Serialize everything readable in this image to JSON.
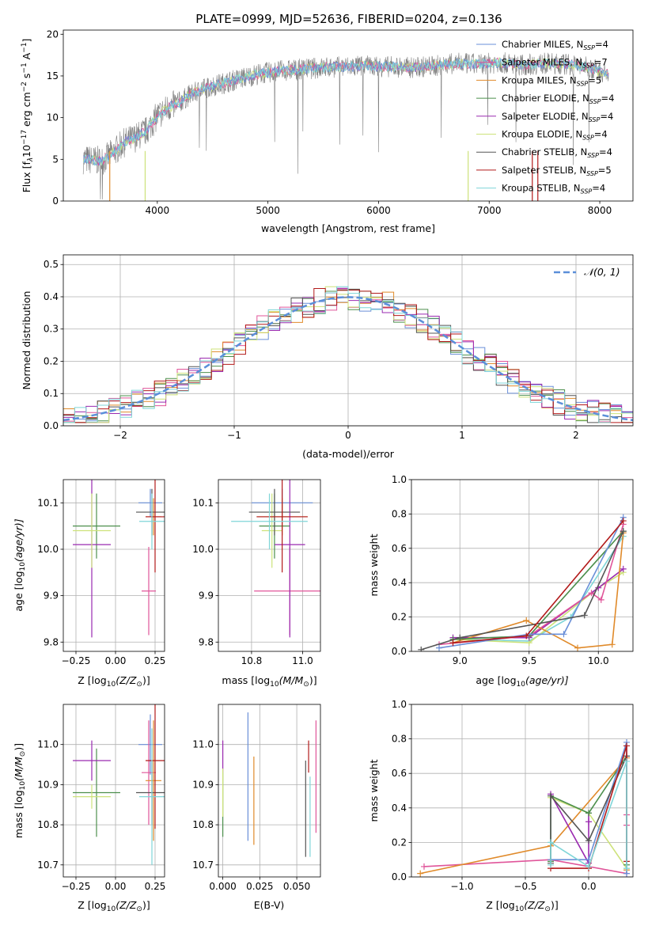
{
  "figure_title": "PLATE=0999, MJD=52636, FIBERID=0204, z=0.136",
  "colors": {
    "data_grey": "#808080",
    "CM": "#6a8fd8",
    "SM": "#e0559a",
    "KM": "#e08a2a",
    "CE": "#4c8f4c",
    "SE": "#9a2ab0",
    "KE": "#cde27a",
    "CS": "#555555",
    "SS": "#b21a1a",
    "KS": "#7fd5d8",
    "gauss": "#5b8fd9"
  },
  "chart_data": [
    {
      "id": "spectrum",
      "type": "line",
      "xlabel": "wavelength [Angstrom, rest frame]",
      "ylabel": "Flux [f",
      "ylabel_rest": "10",
      "ylabel_exp": "−17",
      "ylabel_units": " erg cm",
      "xlim": [
        3150,
        8300
      ],
      "ylim": [
        0,
        20.5
      ],
      "xticks": [
        4000,
        5000,
        6000,
        7000,
        8000
      ],
      "yticks": [
        0,
        5,
        10,
        15,
        20
      ],
      "continuum_x": [
        3330,
        3500,
        3600,
        3700,
        3800,
        3900,
        4000,
        4100,
        4200,
        4300,
        4500,
        4700,
        4900,
        5100,
        5300,
        5500,
        5700,
        5900,
        6100,
        6300,
        6500,
        6700,
        6900,
        7100,
        7300,
        7500,
        7700,
        7900,
        8080
      ],
      "continuum_y": [
        5.0,
        4.8,
        5.8,
        7.0,
        7.6,
        8.4,
        10.2,
        11.2,
        11.8,
        12.8,
        13.8,
        14.5,
        15.2,
        15.6,
        15.8,
        16.0,
        16.1,
        16.2,
        16.1,
        16.0,
        16.2,
        16.5,
        16.4,
        16.6,
        16.3,
        16.5,
        16.4,
        16.0,
        15.2
      ],
      "legend": [
        {
          "key": "CM",
          "label": "Chabrier MILES, N",
          "sub": "SSP",
          "eq": "=4"
        },
        {
          "key": "SM",
          "label": "Salpeter MILES, N",
          "sub": "SSP",
          "eq": "=7"
        },
        {
          "key": "KM",
          "label": "Kroupa MILES, N",
          "sub": "SSP",
          "eq": "=5"
        },
        {
          "key": "CE",
          "label": "Chabrier ELODIE, N",
          "sub": "SSP",
          "eq": "=4"
        },
        {
          "key": "SE",
          "label": "Salpeter ELODIE, N",
          "sub": "SSP",
          "eq": "=4"
        },
        {
          "key": "KE",
          "label": "Kroupa ELODIE, N",
          "sub": "SSP",
          "eq": "=4"
        },
        {
          "key": "CS",
          "label": "Chabrier STELIB, N",
          "sub": "SSP",
          "eq": "=4"
        },
        {
          "key": "SS",
          "label": "Salpeter STELIB, N",
          "sub": "SSP",
          "eq": "=5"
        },
        {
          "key": "KS",
          "label": "Kroupa STELIB, N",
          "sub": "SSP",
          "eq": "=4"
        }
      ]
    },
    {
      "id": "residuals",
      "type": "line",
      "xlabel": "(data-model)/error",
      "ylabel": "Normed distribution",
      "xlim": [
        -2.5,
        2.5
      ],
      "ylim": [
        0,
        0.53
      ],
      "xticks": [
        -2,
        -1,
        0,
        1,
        2
      ],
      "yticks": [
        0.0,
        0.1,
        0.2,
        0.3,
        0.4,
        0.5
      ],
      "bin_width": 0.1,
      "gauss_label": "𝒩(0, 1)"
    },
    {
      "id": "Z_age",
      "type": "scatter",
      "xlabel": "Z [log",
      "xlabel_mid": "(Z/Z",
      "xlabel_end": ")]",
      "ylabel": "age  [log",
      "ylabel_end": "(age/yr)]",
      "xlim": [
        -0.33,
        0.31
      ],
      "ylim": [
        9.78,
        10.15
      ],
      "xticks": [
        -0.25,
        0.0,
        0.25
      ],
      "yticks": [
        9.8,
        9.9,
        10.0,
        10.1
      ],
      "points": [
        {
          "key": "CM",
          "x": 0.22,
          "y": 10.1,
          "xerr": 0.075,
          "yerr": 0.03
        },
        {
          "key": "SM",
          "x": 0.21,
          "y": 9.91,
          "xerr": 0.045,
          "yerr": 0.095
        },
        {
          "key": "KM",
          "x": 0.24,
          "y": 10.07,
          "xerr": 0.05,
          "yerr": 0.04
        },
        {
          "key": "CE",
          "x": -0.12,
          "y": 10.05,
          "xerr": 0.15,
          "yerr": 0.07
        },
        {
          "key": "SE",
          "x": -0.15,
          "y": 10.01,
          "xerr": 0.12,
          "yerr": 0.2
        },
        {
          "key": "KE",
          "x": -0.15,
          "y": 10.04,
          "xerr": 0.12,
          "yerr": 0.08
        },
        {
          "key": "CS",
          "x": 0.23,
          "y": 10.08,
          "xerr": 0.1,
          "yerr": 0.05
        },
        {
          "key": "SS",
          "x": 0.25,
          "y": 10.07,
          "xerr": 0.06,
          "yerr": 0.12
        },
        {
          "key": "KS",
          "x": 0.23,
          "y": 10.06,
          "xerr": 0.08,
          "yerr": 0.06
        }
      ]
    },
    {
      "id": "mass_age",
      "type": "scatter",
      "xlabel": "mass [log",
      "xlabel_mid": "(M/M",
      "xlabel_end": ")]",
      "xlim": [
        10.67,
        11.07
      ],
      "ylim": [
        9.78,
        10.15
      ],
      "xticks": [
        10.8,
        11.0
      ],
      "yticks": [
        9.8,
        9.9,
        10.0,
        10.1
      ],
      "points": [
        {
          "key": "CM",
          "x": 10.92,
          "y": 10.1,
          "xerr": 0.12,
          "yerr": 0.03
        },
        {
          "key": "SM",
          "x": 10.95,
          "y": 9.91,
          "xerr": 0.14,
          "yerr": 0.095
        },
        {
          "key": "KM",
          "x": 10.92,
          "y": 10.07,
          "xerr": 0.1,
          "yerr": 0.04
        },
        {
          "key": "CE",
          "x": 10.89,
          "y": 10.05,
          "xerr": 0.06,
          "yerr": 0.07
        },
        {
          "key": "SE",
          "x": 10.95,
          "y": 10.01,
          "xerr": 0.06,
          "yerr": 0.2
        },
        {
          "key": "KE",
          "x": 10.88,
          "y": 10.04,
          "xerr": 0.04,
          "yerr": 0.08
        },
        {
          "key": "CS",
          "x": 10.89,
          "y": 10.08,
          "xerr": 0.1,
          "yerr": 0.05
        },
        {
          "key": "SS",
          "x": 10.92,
          "y": 10.07,
          "xerr": 0.1,
          "yerr": 0.12
        },
        {
          "key": "KS",
          "x": 10.87,
          "y": 10.06,
          "xerr": 0.15,
          "yerr": 0.06
        }
      ]
    },
    {
      "id": "weights_age",
      "type": "line",
      "xlabel": "age  [log",
      "xlabel_end": "(age/yr)]",
      "ylabel": "mass weight",
      "xlim": [
        8.65,
        10.25
      ],
      "ylim": [
        0,
        1.0
      ],
      "xticks": [
        9.0,
        9.5,
        10.0
      ],
      "yticks": [
        0.0,
        0.2,
        0.4,
        0.6,
        0.8,
        1.0
      ],
      "series": [
        {
          "key": "KS",
          "x": [
            8.95,
            9.5,
            9.8,
            10.18
          ],
          "y": [
            0.07,
            0.06,
            0.2,
            0.67
          ]
        },
        {
          "key": "KE",
          "x": [
            8.95,
            9.5,
            10.0,
            10.18
          ],
          "y": [
            0.07,
            0.05,
            0.37,
            0.46
          ]
        },
        {
          "key": "SE",
          "x": [
            8.95,
            9.5,
            10.0,
            10.18
          ],
          "y": [
            0.08,
            0.08,
            0.37,
            0.48
          ]
        },
        {
          "key": "SM",
          "x": [
            8.85,
            9.5,
            9.95,
            10.02,
            10.18
          ],
          "y": [
            0.04,
            0.09,
            0.34,
            0.3,
            0.74
          ]
        },
        {
          "key": "KM",
          "x": [
            8.95,
            9.48,
            9.85,
            10.1,
            10.18
          ],
          "y": [
            0.05,
            0.18,
            0.02,
            0.04,
            0.69
          ]
        },
        {
          "key": "CE",
          "x": [
            8.95,
            9.5,
            10.18
          ],
          "y": [
            0.07,
            0.09,
            0.7
          ]
        },
        {
          "key": "CM",
          "x": [
            8.85,
            9.5,
            9.75,
            10.18
          ],
          "y": [
            0.02,
            0.1,
            0.1,
            0.78
          ]
        },
        {
          "key": "CS",
          "x": [
            8.72,
            9.0,
            9.9,
            10.18
          ],
          "y": [
            0.01,
            0.08,
            0.21,
            0.7
          ]
        },
        {
          "key": "SS",
          "x": [
            8.95,
            9.48,
            10.18
          ],
          "y": [
            0.05,
            0.09,
            0.76
          ]
        }
      ]
    },
    {
      "id": "Z_mass",
      "type": "scatter",
      "xlabel": "Z [log",
      "xlabel_mid": "(Z/Z",
      "xlabel_end": ")]",
      "ylabel": "mass [log",
      "ylabel_end": "(M/M",
      "ylabel_tail": ")]",
      "xlim": [
        -0.33,
        0.31
      ],
      "ylim": [
        10.67,
        11.1
      ],
      "xticks": [
        -0.25,
        0.0,
        0.25
      ],
      "yticks": [
        10.7,
        10.8,
        10.9,
        11.0
      ],
      "points": [
        {
          "key": "CM",
          "x": 0.22,
          "y": 11.0,
          "xerr": 0.075,
          "yerr": 0.075
        },
        {
          "key": "SM",
          "x": 0.21,
          "y": 10.93,
          "xerr": 0.045,
          "yerr": 0.13
        },
        {
          "key": "KM",
          "x": 0.24,
          "y": 10.91,
          "xerr": 0.05,
          "yerr": 0.15
        },
        {
          "key": "CE",
          "x": -0.12,
          "y": 10.88,
          "xerr": 0.15,
          "yerr": 0.11
        },
        {
          "key": "SE",
          "x": -0.15,
          "y": 10.96,
          "xerr": 0.12,
          "yerr": 0.05
        },
        {
          "key": "KE",
          "x": -0.15,
          "y": 10.87,
          "xerr": 0.12,
          "yerr": 0.03
        },
        {
          "key": "CS",
          "x": 0.23,
          "y": 10.88,
          "xerr": 0.1,
          "yerr": 0.08
        },
        {
          "key": "SS",
          "x": 0.25,
          "y": 10.96,
          "xerr": 0.06,
          "yerr": 0.17
        },
        {
          "key": "KS",
          "x": 0.23,
          "y": 10.87,
          "xerr": 0.08,
          "yerr": 0.17
        }
      ]
    },
    {
      "id": "EBV_mass",
      "type": "scatter",
      "xlabel": "E(B-V)",
      "xlim": [
        -0.003,
        0.066
      ],
      "ylim": [
        10.67,
        11.1
      ],
      "xticks": [
        0.0,
        0.025,
        0.05
      ],
      "yticks": [
        10.7,
        10.8,
        10.9,
        11.0
      ],
      "points": [
        {
          "key": "CM",
          "x": 0.017,
          "y": 10.92,
          "xerr": 0,
          "yerr": 0.16
        },
        {
          "key": "SM",
          "x": 0.063,
          "y": 10.92,
          "xerr": 0,
          "yerr": 0.14
        },
        {
          "key": "KM",
          "x": 0.021,
          "y": 10.86,
          "xerr": 0,
          "yerr": 0.11
        },
        {
          "key": "CE",
          "x": 0.0,
          "y": 10.85,
          "xerr": 0,
          "yerr": 0.08
        },
        {
          "key": "SE",
          "x": 0.0,
          "y": 10.97,
          "xerr": 0,
          "yerr": 0.04
        },
        {
          "key": "KE",
          "x": 0.0,
          "y": 10.88,
          "xerr": 0,
          "yerr": 0.06
        },
        {
          "key": "CS",
          "x": 0.056,
          "y": 10.84,
          "xerr": 0,
          "yerr": 0.12
        },
        {
          "key": "SS",
          "x": 0.058,
          "y": 10.97,
          "xerr": 0,
          "yerr": 0.04
        },
        {
          "key": "KS",
          "x": 0.059,
          "y": 10.82,
          "xerr": 0,
          "yerr": 0.1
        }
      ]
    },
    {
      "id": "weights_Z",
      "type": "line",
      "xlabel": "Z [log",
      "xlabel_mid": "(Z/Z",
      "xlabel_end": ")]",
      "ylabel": "mass weight",
      "xlim": [
        -1.4,
        0.35
      ],
      "ylim": [
        0,
        1.0
      ],
      "xticks": [
        -1.0,
        -0.5,
        0.0
      ],
      "yticks": [
        0.0,
        0.2,
        0.4,
        0.6,
        0.8,
        1.0
      ],
      "series": [
        {
          "key": "SM",
          "x": [
            -1.3,
            -0.3,
            0.3,
            0.3,
            0.3
          ],
          "y": [
            0.06,
            0.1,
            0.02,
            0.3,
            0.36
          ]
        },
        {
          "key": "KM",
          "x": [
            -1.33,
            -0.3,
            0.3,
            0.3
          ],
          "y": [
            0.02,
            0.18,
            0.69,
            0.04
          ]
        },
        {
          "key": "KE",
          "x": [
            -0.3,
            0.0,
            0.3
          ],
          "y": [
            0.46,
            0.37,
            0.05
          ]
        },
        {
          "key": "SE",
          "x": [
            -0.3,
            0.0,
            0.0,
            0.0
          ],
          "y": [
            0.48,
            0.08,
            0.37,
            0.32
          ]
        },
        {
          "key": "CE",
          "x": [
            -0.3,
            -0.3,
            0.0,
            0.3,
            0.3
          ],
          "y": [
            0.09,
            0.47,
            0.37,
            0.7,
            0.07
          ]
        },
        {
          "key": "CM",
          "x": [
            -0.3,
            0.0,
            0.3,
            0.3
          ],
          "y": [
            0.1,
            0.1,
            0.78,
            0.02
          ]
        },
        {
          "key": "CS",
          "x": [
            -0.3,
            -0.3,
            0.0,
            0.3
          ],
          "y": [
            0.08,
            0.47,
            0.21,
            0.7
          ]
        },
        {
          "key": "SS",
          "x": [
            -0.3,
            0.0,
            0.3,
            0.3
          ],
          "y": [
            0.05,
            0.05,
            0.76,
            0.09
          ]
        },
        {
          "key": "KS",
          "x": [
            -0.3,
            -0.3,
            0.0,
            0.3,
            0.3
          ],
          "y": [
            0.07,
            0.2,
            0.06,
            0.67,
            0.05
          ]
        }
      ]
    }
  ]
}
